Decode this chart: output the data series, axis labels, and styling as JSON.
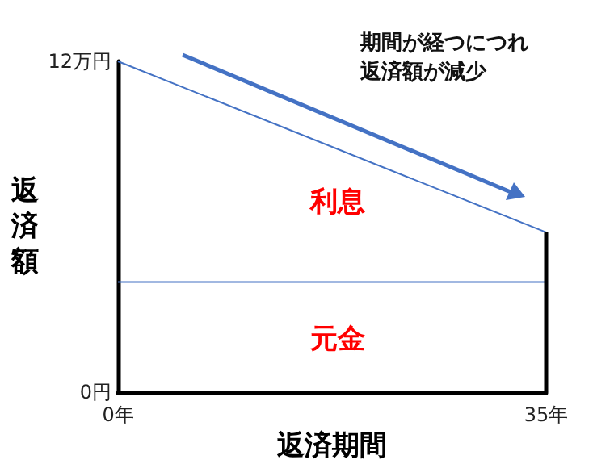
{
  "chart_data": {
    "type": "line",
    "xlabel": "返済期間",
    "ylabel": "返済額",
    "series": [
      {
        "color": "#4472c4",
        "values": [
          12,
          5.8
        ]
      },
      {
        "color": "#4472c4",
        "values": [
          4,
          4
        ]
      },
      {
        "color": "#000000",
        "x": [
          35,
          35
        ],
        "values": [
          5.8,
          0
        ]
      }
    ],
    "x": [
      0,
      35
    ],
    "xlim": [
      0,
      35
    ],
    "xticks": [
      {
        "value": 0,
        "label": "0年"
      },
      {
        "value": 35,
        "label": "35年"
      }
    ],
    "ylim": [
      0,
      12
    ],
    "yticks": [
      {
        "value": 0,
        "label": "0円"
      },
      {
        "value": 12,
        "label": "12万円"
      }
    ],
    "annotations": [
      "利息",
      "元金",
      "期間が経つにつれ返済額が減少"
    ],
    "grid": false,
    "marker": "none",
    "line_style": "solid"
  }
}
